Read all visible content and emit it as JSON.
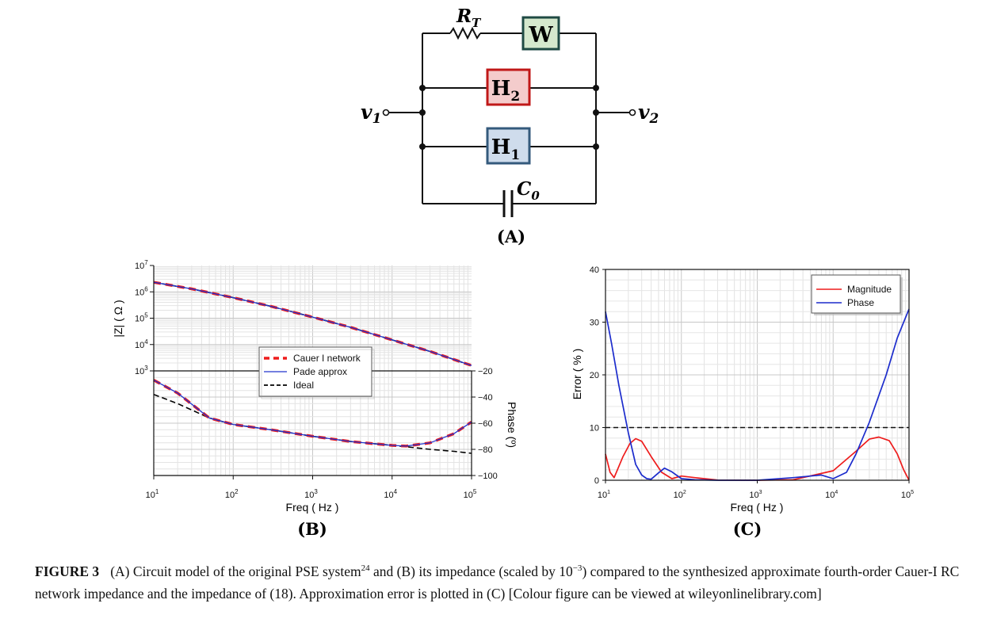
{
  "circuit": {
    "rt_label": "R",
    "rt_sub": "T",
    "w_label": "W",
    "h2_label": "H",
    "h2_sub": "2",
    "h1_label": "H",
    "h1_sub": "1",
    "c0_label": "C",
    "c0_sub": "0",
    "v1_label": "v",
    "v1_sub": "1",
    "v2_label": "v",
    "v2_sub": "2",
    "w_color": "#d5e8cd",
    "h2_color": "#f4cccc",
    "h1_color": "#cfdcec",
    "panel_label": "(A)"
  },
  "panel_b": {
    "panel_label": "(B)",
    "xlabel": "Freq ( Hz )",
    "ylabel_left": "|Z| ( Ω )",
    "ylabel_right": "Phase (º)",
    "legend": [
      "Cauer I network",
      "Pade approx",
      "Ideal"
    ]
  },
  "panel_c": {
    "panel_label": "(C)",
    "xlabel": "Freq ( Hz )",
    "ylabel": "Error ( % )",
    "legend": [
      "Magnitude",
      "Phase"
    ]
  },
  "caption": {
    "figure_label": "FIGURE 3",
    "part1": "(A) Circuit model of the original PSE system",
    "sup1": "24",
    "part2": " and (B) its impedance (scaled by 10",
    "sup2": "−3",
    "part3": ") compared to the synthesized approximate fourth-order Cauer-I RC network impedance and the impedance of (18). Approximation error is plotted in (C) [Colour figure can be viewed at wileyonlinelibrary.com]"
  },
  "chart_data": [
    {
      "type": "line",
      "title": "",
      "xlabel": "Freq ( Hz )",
      "ylabel": "|Z| ( Ω )",
      "xscale": "log",
      "yscale": "log",
      "xlim": [
        10,
        100000
      ],
      "ylim": [
        1000,
        10000000
      ],
      "x_ticks": [
        10,
        100,
        1000,
        10000,
        100000
      ],
      "y_ticks": [
        1000,
        10000,
        100000,
        1000000,
        10000000
      ],
      "grid": true,
      "legend_position": "center",
      "x": [
        10,
        30,
        100,
        300,
        1000,
        3000,
        10000,
        30000,
        100000
      ],
      "series": [
        {
          "name": "Cauer I network",
          "color": "#ee1c1c",
          "values": [
            2300000,
            1300000,
            600000,
            280000,
            110000,
            45000,
            15000,
            5500,
            1600
          ]
        },
        {
          "name": "Pade approx",
          "color": "#2233cc",
          "values": [
            2300000,
            1300000,
            600000,
            280000,
            110000,
            45000,
            15000,
            5500,
            1600
          ]
        },
        {
          "name": "Ideal",
          "color": "#000000",
          "values": [
            2300000,
            1300000,
            600000,
            280000,
            110000,
            45000,
            15000,
            5500,
            1600
          ]
        }
      ]
    },
    {
      "type": "line",
      "title": "",
      "xlabel": "Freq ( Hz )",
      "ylabel": "Phase (º)",
      "xscale": "log",
      "xlim": [
        10,
        100000
      ],
      "ylim": [
        -100,
        -20
      ],
      "y_ticks": [
        -20,
        -40,
        -60,
        -80,
        -100
      ],
      "grid": true,
      "x": [
        10,
        20,
        50,
        100,
        300,
        1000,
        3000,
        10000,
        15000,
        30000,
        60000,
        100000
      ],
      "series": [
        {
          "name": "Cauer I network",
          "color": "#ee1c1c",
          "values": [
            -27,
            -37,
            -56,
            -61,
            -65,
            -70,
            -74,
            -77,
            -77.5,
            -75,
            -68,
            -59
          ]
        },
        {
          "name": "Pade approx",
          "color": "#2233cc",
          "values": [
            -27,
            -37,
            -56,
            -61,
            -65,
            -70,
            -74,
            -77,
            -77.5,
            -75,
            -68,
            -59
          ]
        },
        {
          "name": "Ideal",
          "color": "#000000",
          "values": [
            -38,
            -45,
            -56,
            -61,
            -65,
            -70,
            -74,
            -77,
            -78,
            -80,
            -81.5,
            -83
          ]
        }
      ]
    },
    {
      "type": "line",
      "title": "",
      "xlabel": "Freq ( Hz )",
      "ylabel": "Error ( % )",
      "xscale": "log",
      "xlim": [
        10,
        100000
      ],
      "ylim": [
        0,
        40
      ],
      "x_ticks": [
        10,
        100,
        1000,
        10000,
        100000
      ],
      "y_ticks": [
        0,
        10,
        20,
        30,
        40
      ],
      "grid": true,
      "legend_position": "top-right",
      "threshold": 10,
      "series": [
        {
          "name": "Magnitude",
          "color": "#ee1c1c",
          "x": [
            10,
            11.5,
            13,
            17,
            21,
            25,
            30,
            40,
            55,
            75,
            100,
            150,
            300,
            1000,
            3000,
            10000,
            20000,
            30000,
            40000,
            55000,
            70000,
            85000,
            100000
          ],
          "values": [
            5,
            1.5,
            0.5,
            4.5,
            7,
            7.9,
            7.4,
            4.5,
            1.5,
            0.3,
            0.8,
            0.5,
            0.05,
            0,
            0.1,
            1.8,
            5.5,
            7.8,
            8.2,
            7.5,
            5,
            2,
            0
          ]
        },
        {
          "name": "Phase",
          "color": "#1c2ccc",
          "x": [
            10,
            12,
            15,
            20,
            25,
            30,
            35,
            40,
            50,
            60,
            75,
            100,
            150,
            300,
            1000,
            3000,
            7000,
            10000,
            15000,
            20000,
            30000,
            50000,
            70000,
            100000
          ],
          "values": [
            32,
            26,
            18,
            9,
            3,
            1,
            0.3,
            0.2,
            1.4,
            2.3,
            1.6,
            0.3,
            0.1,
            0,
            0,
            0.5,
            1,
            0.3,
            1.5,
            5,
            11,
            20,
            27,
            32.5
          ]
        }
      ]
    }
  ]
}
